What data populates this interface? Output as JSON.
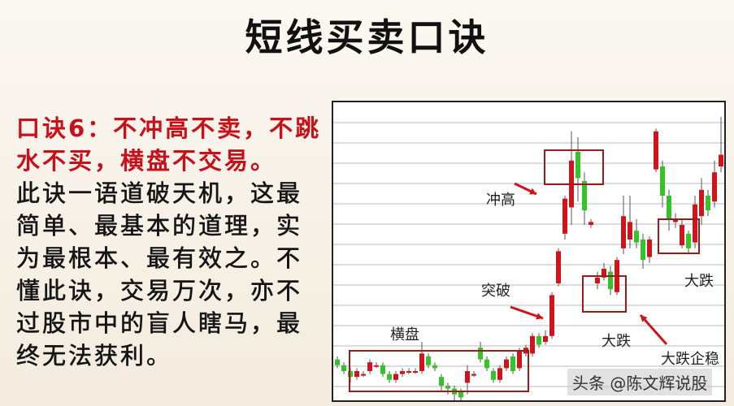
{
  "title": "短线买卖口诀",
  "heading_lines": [
    "口诀6：不冲高不卖，不跳",
    "水不买，横盘不交易。"
  ],
  "body_lines": [
    "此诀一语道破天机，这最",
    "简单、最基本的道理，实",
    "为最根本、最有效之。不",
    "懂此诀，交易万次，亦不",
    "过股市中的盲人瞎马，最",
    "终无法获利。"
  ],
  "colors": {
    "heading": "#c8101a",
    "up_candle": "#d0141c",
    "down_candle": "#38c22a",
    "box": "#9b1b1b",
    "arrow": "#d0141c"
  },
  "chart": {
    "annotations": {
      "chonggao": "冲高",
      "tupo": "突破",
      "hengpan": "横盘",
      "dadie1": "大跌",
      "dadie_qiwen": "大跌企稳",
      "dadie2": "大跌"
    },
    "watermark": "头条 @陈文辉说股"
  },
  "chart_data": {
    "type": "candlestick",
    "candles": [
      [
        14,
        12,
        15,
        11
      ],
      [
        12,
        10,
        13,
        9
      ],
      [
        10,
        8,
        11,
        6
      ],
      [
        8,
        10,
        11,
        7
      ],
      [
        9,
        9,
        10,
        8
      ],
      [
        10,
        13,
        14,
        9
      ],
      [
        12,
        12,
        13,
        11
      ],
      [
        12,
        9,
        13,
        8
      ],
      [
        9,
        7,
        10,
        6
      ],
      [
        7,
        9,
        10,
        6
      ],
      [
        9,
        10,
        11,
        8
      ],
      [
        10,
        10,
        11,
        9
      ],
      [
        10,
        10,
        11,
        9
      ],
      [
        10,
        16,
        20,
        9
      ],
      [
        15,
        12,
        16,
        11
      ],
      [
        12,
        11,
        13,
        10
      ],
      [
        8,
        5,
        9,
        3
      ],
      [
        5,
        4,
        6,
        2
      ],
      [
        4,
        2,
        5,
        0
      ],
      [
        3,
        1,
        4,
        0
      ],
      [
        6,
        10,
        12,
        2
      ],
      [
        9,
        9,
        10,
        8
      ],
      [
        18,
        14,
        20,
        13
      ],
      [
        14,
        11,
        15,
        10
      ],
      [
        10,
        7,
        11,
        6
      ],
      [
        7,
        11,
        12,
        6
      ],
      [
        11,
        14,
        15,
        10
      ],
      [
        15,
        10,
        16,
        9
      ],
      [
        11,
        17,
        18,
        10
      ],
      [
        16,
        18,
        19,
        15
      ],
      [
        16,
        22,
        23,
        15
      ],
      [
        22,
        19,
        23,
        18
      ],
      [
        20,
        22,
        24,
        19
      ],
      [
        22,
        36,
        37,
        21
      ],
      [
        40,
        51,
        52,
        39
      ],
      [
        57,
        69,
        70,
        55
      ],
      [
        66,
        82,
        92,
        60
      ],
      [
        85,
        76,
        90,
        68
      ],
      [
        75,
        65,
        78,
        60
      ],
      [
        60,
        61,
        62,
        59
      ],
      [
        40,
        42,
        44,
        38
      ],
      [
        42,
        45,
        47,
        41
      ],
      [
        44,
        38,
        46,
        36
      ],
      [
        37,
        48,
        49,
        36
      ],
      [
        52,
        63,
        70,
        50
      ],
      [
        55,
        61,
        70,
        52
      ],
      [
        58,
        54,
        62,
        52
      ],
      [
        55,
        48,
        57,
        45
      ],
      [
        49,
        55,
        56,
        47
      ],
      [
        79,
        92,
        93,
        78
      ],
      [
        80,
        70,
        82,
        66
      ],
      [
        70,
        62,
        72,
        58
      ],
      [
        61,
        62,
        64,
        59
      ],
      [
        53,
        60,
        62,
        52
      ],
      [
        57,
        52,
        58,
        50
      ],
      [
        54,
        67,
        70,
        52
      ],
      [
        63,
        72,
        76,
        60
      ],
      [
        70,
        65,
        72,
        63
      ],
      [
        68,
        78,
        82,
        66
      ],
      [
        80,
        84,
        97,
        78
      ]
    ]
  }
}
